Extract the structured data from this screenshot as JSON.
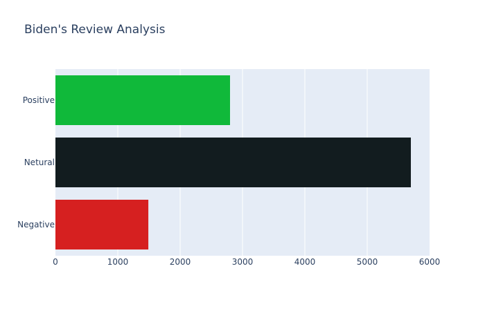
{
  "chart_data": {
    "type": "bar",
    "orientation": "horizontal",
    "title": "Biden's Review Analysis",
    "xlabel": "",
    "ylabel": "",
    "categories": [
      "Negative",
      "Netural",
      "Positive"
    ],
    "values": [
      1490,
      5700,
      2800
    ],
    "colors": [
      "#d62020",
      "#121c1f",
      "#10b93a"
    ],
    "xlim": [
      0,
      6000
    ],
    "xticks": [
      0,
      1000,
      2000,
      3000,
      4000,
      5000,
      6000
    ],
    "grid": true,
    "legend": "none",
    "plot_background": "#e5ecf6",
    "gridline_color": "#ffffff",
    "text_color": "#2a3f5f"
  }
}
